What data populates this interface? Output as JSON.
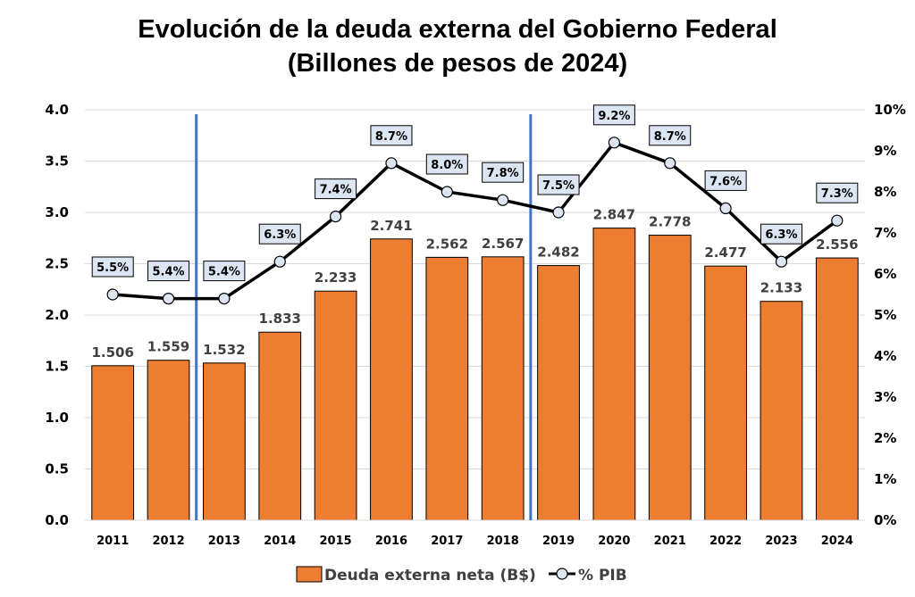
{
  "chart_data": {
    "type": "bar+line",
    "title": [
      "Evolución de la deuda externa del Gobierno Federal",
      "(Billones de pesos de 2024)"
    ],
    "categories": [
      "2011",
      "2012",
      "2013",
      "2014",
      "2015",
      "2016",
      "2017",
      "2018",
      "2019",
      "2020",
      "2021",
      "2022",
      "2023",
      "2024"
    ],
    "series": [
      {
        "name": "Deuda externa neta (B$)",
        "type": "bar",
        "axis": "left",
        "color": "#ED7D31",
        "values": [
          1.506,
          1.559,
          1.532,
          1.833,
          2.233,
          2.741,
          2.562,
          2.567,
          2.482,
          2.847,
          2.778,
          2.477,
          2.133,
          2.556
        ],
        "labels": [
          "1.506",
          "1.559",
          "1.532",
          "1.833",
          "2.233",
          "2.741",
          "2.562",
          "2.567",
          "2.482",
          "2.847",
          "2.778",
          "2.477",
          "2.133",
          "2.556"
        ]
      },
      {
        "name": "% PIB",
        "type": "line",
        "axis": "right",
        "color": "#000000",
        "marker_fill": "#DCE6F2",
        "values": [
          5.5,
          5.4,
          5.4,
          6.3,
          7.4,
          8.7,
          8.0,
          7.8,
          7.5,
          9.2,
          8.7,
          7.6,
          6.3,
          7.3
        ],
        "labels": [
          "5.5%",
          "5.4%",
          "5.4%",
          "6.3%",
          "7.4%",
          "8.7%",
          "8.0%",
          "7.8%",
          "7.5%",
          "9.2%",
          "8.7%",
          "7.6%",
          "6.3%",
          "7.3%"
        ]
      }
    ],
    "y_left": {
      "range": [
        0,
        4.0
      ],
      "ticks": [
        "0.0",
        "0.5",
        "1.0",
        "1.5",
        "2.0",
        "2.5",
        "3.0",
        "3.5",
        "4.0"
      ]
    },
    "y_right": {
      "range": [
        0,
        10
      ],
      "ticks": [
        "0%",
        "1%",
        "2%",
        "3%",
        "4%",
        "5%",
        "6%",
        "7%",
        "8%",
        "9%",
        "10%"
      ]
    },
    "vertical_markers": {
      "between": [
        [
          "2012",
          "2013"
        ],
        [
          "2018",
          "2019"
        ]
      ],
      "color": "#4472C4"
    },
    "grid": true,
    "legend": "bottom"
  }
}
